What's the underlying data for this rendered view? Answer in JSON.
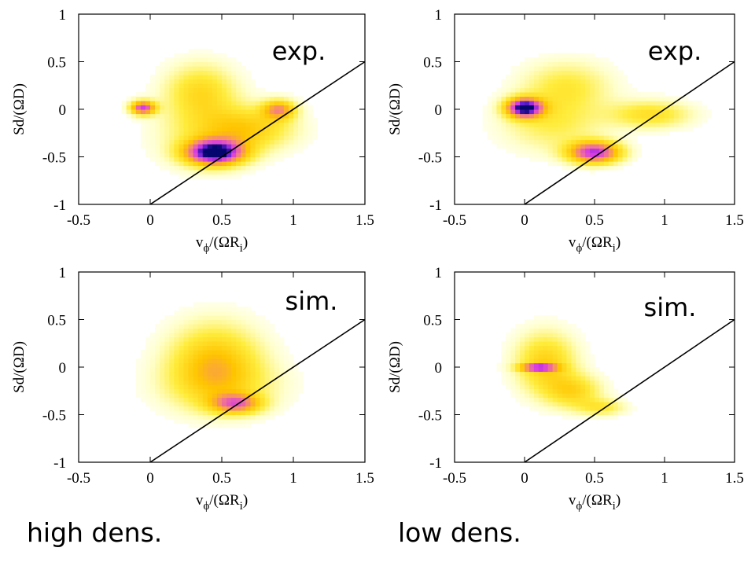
{
  "chart_data": [
    {
      "type": "heatmap",
      "tag": "exp.",
      "xlabel_main": "v",
      "xlabel_sub": "ϕ",
      "xlabel_rest": "/(ΩR",
      "xlabel_sub2": "i",
      "xlabel_close": ")",
      "ylabel": "Sd/(ΩD)",
      "xlim": [
        -0.5,
        1.5
      ],
      "ylim": [
        -1,
        1
      ],
      "xticks": [
        "-0.5",
        "0",
        "0.5",
        "1",
        "1.5"
      ],
      "yticks": [
        "-1",
        "-0.5",
        "0",
        "0.5",
        "1"
      ],
      "line": {
        "x": [
          0,
          1.5
        ],
        "y": [
          -1,
          0.5
        ]
      },
      "blobs": [
        {
          "x": 0.45,
          "y": -0.45,
          "sx": 0.14,
          "sy": 0.09,
          "w": 1.0
        },
        {
          "x": -0.05,
          "y": 0.02,
          "sx": 0.06,
          "sy": 0.05,
          "w": 0.75
        },
        {
          "x": 0.9,
          "y": 0.0,
          "sx": 0.08,
          "sy": 0.07,
          "w": 0.5
        },
        {
          "x": 0.35,
          "y": 0.2,
          "sx": 0.17,
          "sy": 0.2,
          "w": 0.28
        },
        {
          "x": 0.7,
          "y": -0.2,
          "sx": 0.22,
          "sy": 0.15,
          "w": 0.3
        },
        {
          "x": 0.4,
          "y": -0.25,
          "sx": 0.25,
          "sy": 0.25,
          "w": 0.18
        }
      ]
    },
    {
      "type": "heatmap",
      "tag": "exp.",
      "xlabel_main": "v",
      "xlabel_sub": "ϕ",
      "xlabel_rest": "/(ΩR",
      "xlabel_sub2": "i",
      "xlabel_close": ")",
      "ylabel": "Sd/(ΩD)",
      "xlim": [
        -0.5,
        1.5
      ],
      "ylim": [
        -1,
        1
      ],
      "xticks": [
        "-0.5",
        "0",
        "0.5",
        "1",
        "1.5"
      ],
      "yticks": [
        "-1",
        "-0.5",
        "0",
        "0.5",
        "1"
      ],
      "line": {
        "x": [
          0,
          1.5
        ],
        "y": [
          -1,
          0.5
        ]
      },
      "blobs": [
        {
          "x": 0.0,
          "y": 0.02,
          "sx": 0.09,
          "sy": 0.07,
          "w": 1.0
        },
        {
          "x": 0.5,
          "y": -0.45,
          "sx": 0.13,
          "sy": 0.08,
          "w": 0.8
        },
        {
          "x": 0.3,
          "y": 0.25,
          "sx": 0.22,
          "sy": 0.18,
          "w": 0.22
        },
        {
          "x": 0.9,
          "y": -0.05,
          "sx": 0.2,
          "sy": 0.1,
          "w": 0.28
        },
        {
          "x": 0.2,
          "y": -0.15,
          "sx": 0.25,
          "sy": 0.2,
          "w": 0.2
        }
      ]
    },
    {
      "type": "heatmap",
      "tag": "sim.",
      "xlabel_main": "v",
      "xlabel_sub": "ϕ",
      "xlabel_rest": "/(ΩR",
      "xlabel_sub2": "i",
      "xlabel_close": ")",
      "ylabel": "Sd/(ΩD)",
      "xlim": [
        -0.5,
        1.5
      ],
      "ylim": [
        -1,
        1
      ],
      "xticks": [
        "-0.5",
        "0",
        "0.5",
        "1",
        "1.5"
      ],
      "yticks": [
        "-1",
        "-0.5",
        "0",
        "0.5",
        "1"
      ],
      "line": {
        "x": [
          0,
          1.5
        ],
        "y": [
          -1,
          0.5
        ]
      },
      "blobs": [
        {
          "x": 0.45,
          "y": 0.05,
          "sx": 0.22,
          "sy": 0.28,
          "w": 0.4
        },
        {
          "x": 0.6,
          "y": -0.38,
          "sx": 0.12,
          "sy": 0.07,
          "w": 0.55
        },
        {
          "x": 0.5,
          "y": -0.2,
          "sx": 0.3,
          "sy": 0.2,
          "w": 0.15
        }
      ]
    },
    {
      "type": "heatmap",
      "tag": "sim.",
      "xlabel_main": "v",
      "xlabel_sub": "ϕ",
      "xlabel_rest": "/(ΩR",
      "xlabel_sub2": "i",
      "xlabel_close": ")",
      "ylabel": "Sd/(ΩD)",
      "xlim": [
        -0.5,
        1.5
      ],
      "ylim": [
        -1,
        1
      ],
      "xticks": [
        "-0.5",
        "0",
        "0.5",
        "1",
        "1.5"
      ],
      "yticks": [
        "-1",
        "-0.5",
        "0",
        "0.5",
        "1"
      ],
      "line": {
        "x": [
          0,
          1.5
        ],
        "y": [
          -1,
          0.5
        ]
      },
      "blobs": [
        {
          "x": 0.1,
          "y": 0.0,
          "sx": 0.09,
          "sy": 0.025,
          "w": 0.7
        },
        {
          "x": 0.15,
          "y": 0.05,
          "sx": 0.15,
          "sy": 0.22,
          "w": 0.35
        },
        {
          "x": 0.35,
          "y": -0.25,
          "sx": 0.14,
          "sy": 0.12,
          "w": 0.3
        },
        {
          "x": 0.55,
          "y": -0.42,
          "sx": 0.12,
          "sy": 0.06,
          "w": 0.22
        }
      ]
    }
  ],
  "group_labels": {
    "left": "high dens.",
    "right": "low dens."
  }
}
